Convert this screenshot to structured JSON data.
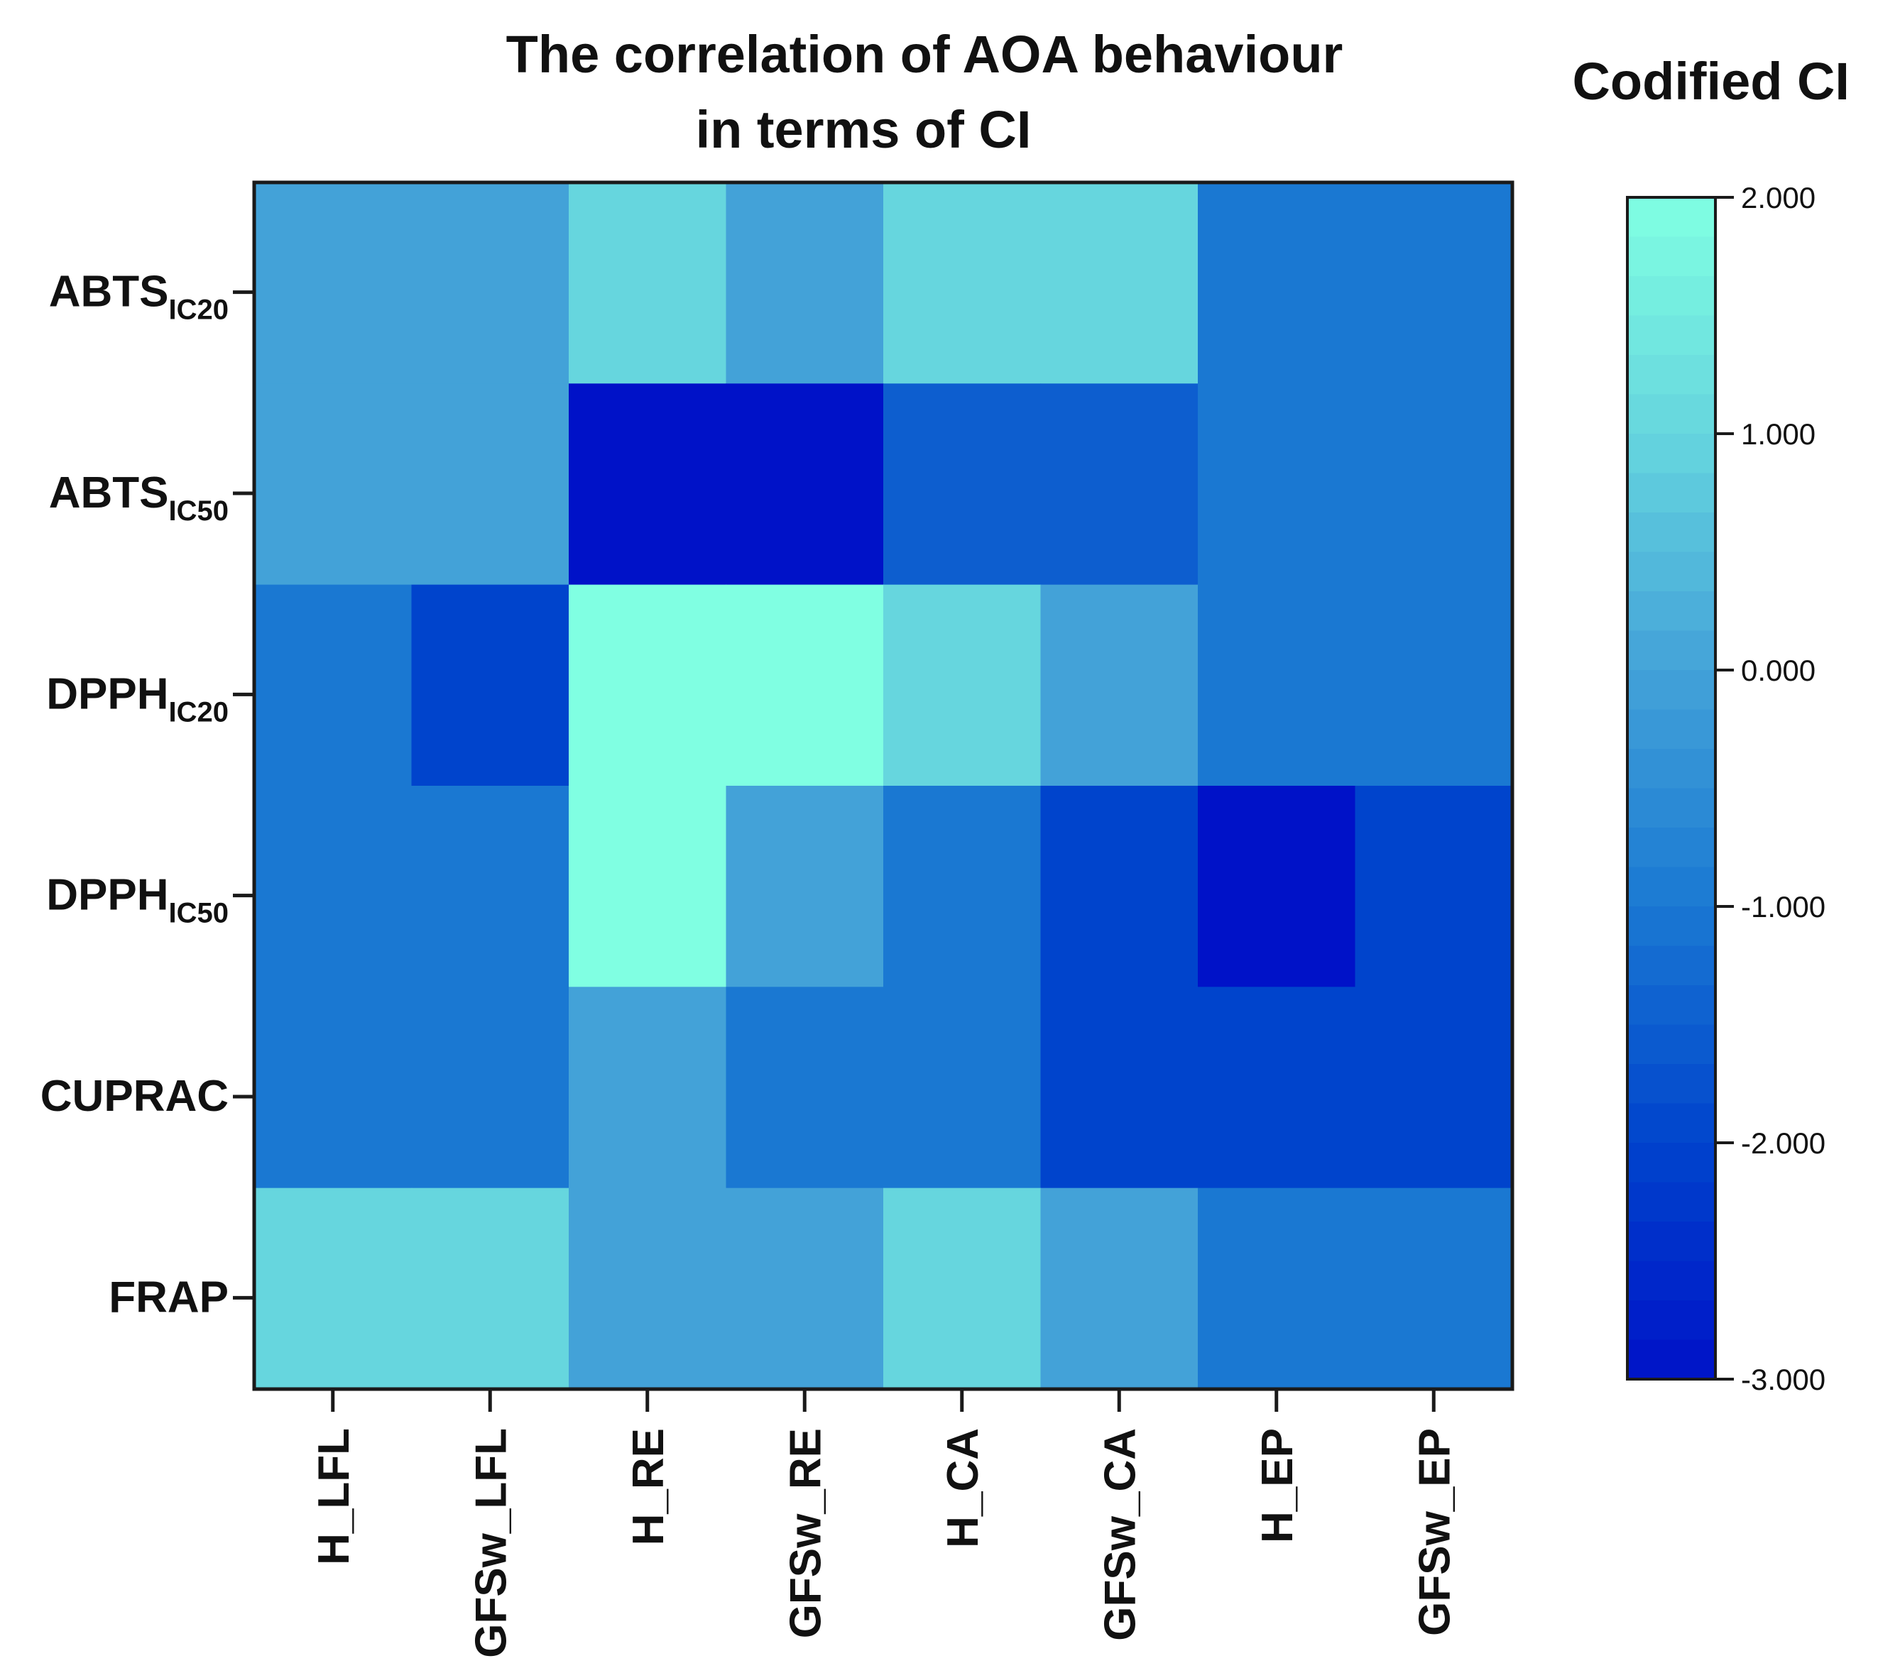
{
  "chart_data": {
    "type": "heatmap",
    "title_lines": [
      "The correlation of AOA behaviour",
      "in terms of CI"
    ],
    "colorbar_title": "Codified CI",
    "rows": [
      {
        "main": "ABTS",
        "sub": "IC20"
      },
      {
        "main": "ABTS",
        "sub": "IC50"
      },
      {
        "main": "DPPH",
        "sub": "IC20"
      },
      {
        "main": "DPPH",
        "sub": "IC50"
      },
      {
        "main": "CUPRAC",
        "sub": ""
      },
      {
        "main": "FRAP",
        "sub": ""
      }
    ],
    "columns": [
      "H_LFL",
      "GFSw_LFL",
      "H_RE",
      "GFSw_RE",
      "H_CA",
      "GFSw_CA",
      "H_EP",
      "GFSw_EP"
    ],
    "values": [
      [
        0,
        0,
        1,
        0,
        1,
        1,
        -1,
        -1
      ],
      [
        0,
        0,
        -3,
        -3,
        -1.5,
        -1.5,
        -1,
        -1
      ],
      [
        -1,
        -2,
        2,
        2,
        1,
        0,
        -1,
        -1
      ],
      [
        -1,
        -1,
        2,
        0,
        -1,
        -2,
        -3,
        -2
      ],
      [
        -1,
        -1,
        0,
        -1,
        -1,
        -2,
        -2,
        -2
      ],
      [
        1,
        1,
        0,
        0,
        1,
        0,
        -1,
        -1
      ]
    ],
    "colorbar": {
      "min": -3,
      "max": 2,
      "ticks": [
        "2.000",
        "1.000",
        "0.000",
        "-1.000",
        "-2.000",
        "-3.000"
      ],
      "tick_values": [
        2,
        1,
        0,
        -1,
        -2,
        -3
      ]
    },
    "color_stops": [
      {
        "v": -3,
        "c": "#0012c8"
      },
      {
        "v": -2,
        "c": "#0044cc"
      },
      {
        "v": -1,
        "c": "#1a78d2"
      },
      {
        "v": 0,
        "c": "#43a2d8"
      },
      {
        "v": 1,
        "c": "#66d6de"
      },
      {
        "v": 2,
        "c": "#80ffe2"
      }
    ]
  }
}
